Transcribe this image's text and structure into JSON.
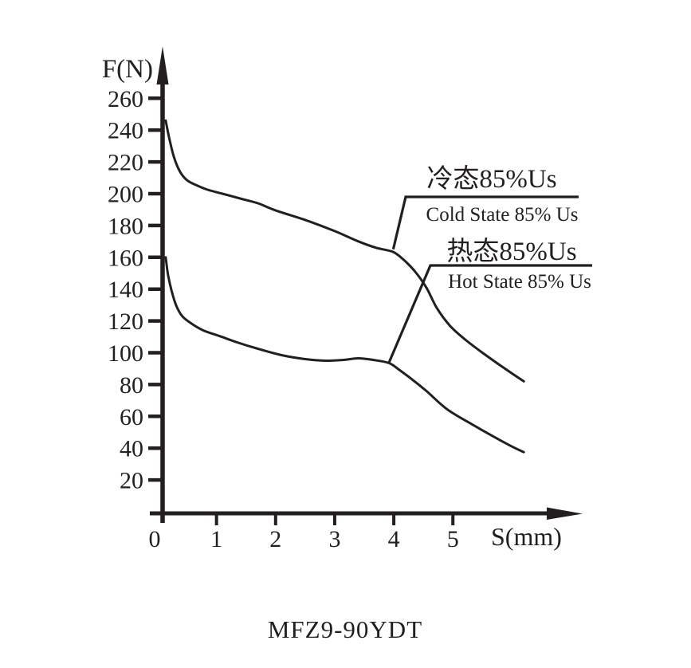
{
  "page": {
    "background": "#ffffff",
    "ink": "#231f20"
  },
  "chart_data": {
    "type": "line",
    "title": "MFZ9-90YDT",
    "xlabel": "S(mm)",
    "ylabel": "F(N)",
    "xlim": [
      0,
      6.3
    ],
    "ylim": [
      0,
      270
    ],
    "grid": false,
    "legend_position": "inline-callouts",
    "x_ticks": [
      0,
      1,
      2,
      3,
      4,
      5
    ],
    "y_ticks": [
      20,
      40,
      60,
      80,
      100,
      120,
      140,
      160,
      180,
      200,
      220,
      240,
      260
    ],
    "series": [
      {
        "id": "cold",
        "name": "冷态85%Us (Cold State 85% Us)",
        "points": [
          [
            0.14,
            246
          ],
          [
            0.2,
            235
          ],
          [
            0.28,
            223
          ],
          [
            0.38,
            214
          ],
          [
            0.5,
            208.5
          ],
          [
            0.65,
            205.5
          ],
          [
            0.85,
            202.5
          ],
          [
            1.1,
            200
          ],
          [
            1.4,
            197
          ],
          [
            1.7,
            194
          ],
          [
            2.0,
            189.5
          ],
          [
            2.5,
            183.5
          ],
          [
            3.0,
            176.5
          ],
          [
            3.4,
            170
          ],
          [
            3.7,
            166
          ],
          [
            3.98,
            163.5
          ],
          [
            4.15,
            159
          ],
          [
            4.35,
            151.5
          ],
          [
            4.55,
            141
          ],
          [
            4.73,
            128
          ],
          [
            4.95,
            117
          ],
          [
            5.2,
            108.5
          ],
          [
            5.5,
            100
          ],
          [
            5.9,
            89.5
          ],
          [
            6.2,
            82
          ]
        ]
      },
      {
        "id": "hot",
        "name": "热态85%Us (Hot State 85% Us)",
        "points": [
          [
            0.14,
            160
          ],
          [
            0.18,
            149
          ],
          [
            0.24,
            139
          ],
          [
            0.32,
            129.5
          ],
          [
            0.42,
            123
          ],
          [
            0.57,
            118.5
          ],
          [
            0.78,
            114
          ],
          [
            1.05,
            110.5
          ],
          [
            1.35,
            106.5
          ],
          [
            1.7,
            102.5
          ],
          [
            2.1,
            98.5
          ],
          [
            2.5,
            96
          ],
          [
            2.85,
            95
          ],
          [
            3.15,
            95.5
          ],
          [
            3.4,
            96.5
          ],
          [
            3.65,
            95.5
          ],
          [
            3.92,
            93.5
          ],
          [
            4.1,
            89
          ],
          [
            4.3,
            83.5
          ],
          [
            4.55,
            76
          ],
          [
            4.9,
            64.5
          ],
          [
            5.3,
            55.5
          ],
          [
            5.7,
            47
          ],
          [
            6.0,
            41
          ],
          [
            6.2,
            37.5
          ]
        ]
      }
    ],
    "annotations": [
      {
        "id": "cold",
        "label_cn": "冷态85%Us",
        "label_en": "Cold State 85% Us",
        "attach": {
          "s": 3.99,
          "f": 165
        }
      },
      {
        "id": "hot",
        "label_cn": "热态85%Us",
        "label_en": "Hot State 85% Us",
        "attach": {
          "s": 3.92,
          "f": 94
        }
      }
    ]
  }
}
